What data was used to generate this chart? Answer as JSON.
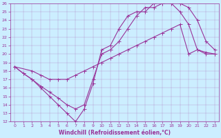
{
  "xlabel": "Windchill (Refroidissement éolien,°C)",
  "bg_color": "#cceeff",
  "line_color": "#993399",
  "xlim": [
    -0.5,
    23.5
  ],
  "ylim": [
    12,
    26
  ],
  "xticks": [
    0,
    1,
    2,
    3,
    4,
    5,
    6,
    7,
    8,
    9,
    10,
    11,
    12,
    13,
    14,
    15,
    16,
    17,
    18,
    19,
    20,
    21,
    22,
    23
  ],
  "yticks": [
    12,
    13,
    14,
    15,
    16,
    17,
    18,
    19,
    20,
    21,
    22,
    23,
    24,
    25,
    26
  ],
  "line1_x": [
    0,
    1,
    2,
    3,
    4,
    5,
    6,
    7,
    8,
    9,
    10,
    11,
    12,
    13,
    14,
    15,
    16,
    17,
    18,
    19,
    20,
    21,
    22,
    23
  ],
  "line1_y": [
    18.5,
    17.7,
    17.0,
    16.0,
    15.0,
    14.0,
    13.0,
    12.0,
    13.5,
    16.5,
    20.5,
    21.0,
    23.0,
    24.5,
    25.0,
    25.0,
    26.0,
    26.0,
    26.0,
    25.0,
    23.5,
    20.5,
    20.0,
    20.0
  ],
  "line2_x": [
    0,
    2,
    3,
    4,
    5,
    6,
    7,
    8,
    9,
    10,
    11,
    12,
    13,
    14,
    15,
    16,
    17,
    18,
    19,
    20,
    21,
    22,
    23
  ],
  "line2_y": [
    18.5,
    18.0,
    17.5,
    17.0,
    17.0,
    17.0,
    17.5,
    18.0,
    18.5,
    19.0,
    19.5,
    20.0,
    20.5,
    21.0,
    21.5,
    22.0,
    22.5,
    23.0,
    23.5,
    20.0,
    20.5,
    20.2,
    20.0
  ],
  "line3_x": [
    0,
    1,
    2,
    3,
    4,
    5,
    6,
    7,
    8,
    9,
    10,
    11,
    12,
    13,
    14,
    15,
    16,
    17,
    18,
    19,
    20,
    21,
    22,
    23
  ],
  "line3_y": [
    18.5,
    17.7,
    17.0,
    16.2,
    15.5,
    14.8,
    14.0,
    13.5,
    14.0,
    17.0,
    20.0,
    20.5,
    21.5,
    23.0,
    24.5,
    25.5,
    25.5,
    26.0,
    26.0,
    26.0,
    25.5,
    24.0,
    21.5,
    20.5
  ]
}
